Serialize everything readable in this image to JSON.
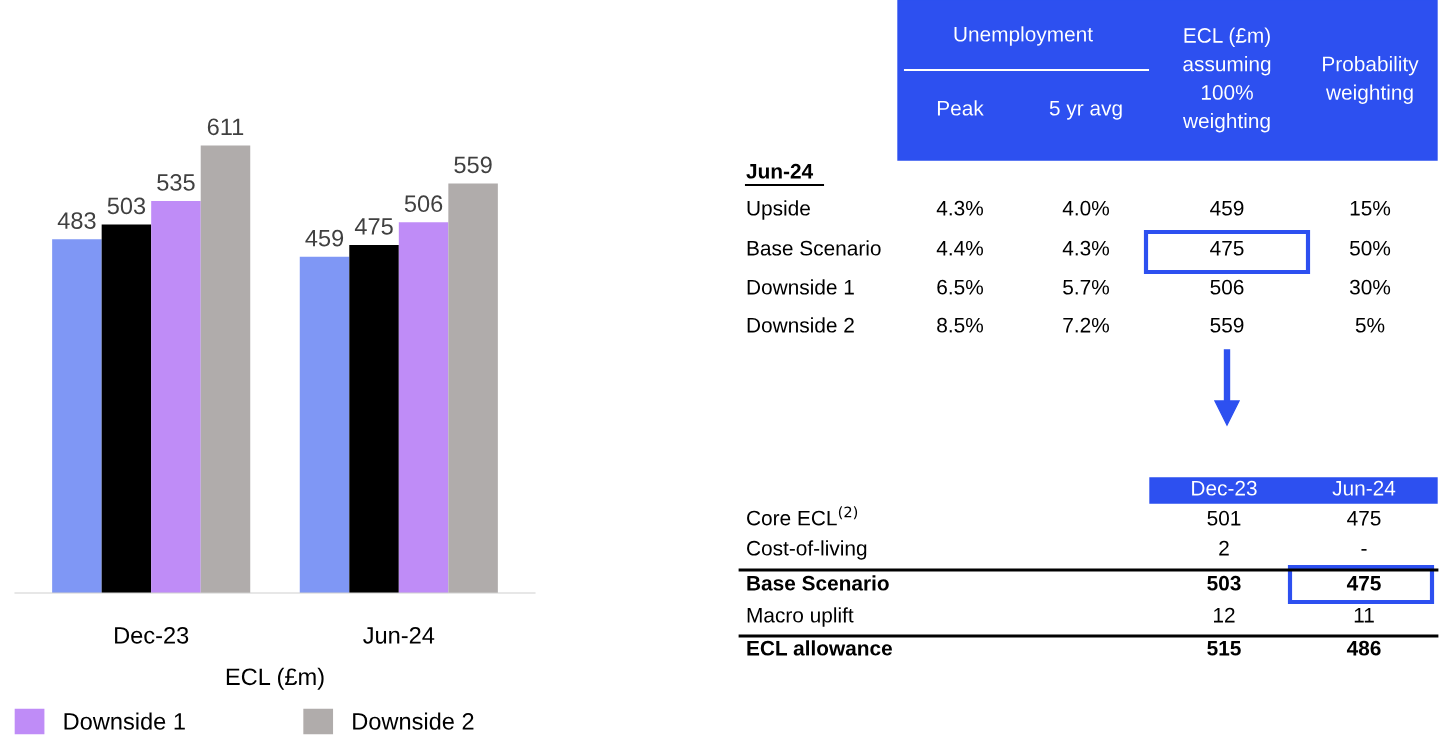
{
  "chart_data": [
    {
      "type": "bar",
      "xlabel": "ECL (£m)",
      "categories": [
        "Dec-23",
        "Jun-24"
      ],
      "series": [
        {
          "color": "#7f97f5",
          "values": [
            483,
            459
          ]
        },
        {
          "color": "#000000",
          "values": [
            503,
            475
          ]
        },
        {
          "name": "Downside 1",
          "color": "#bf8cf7",
          "values": [
            535,
            506
          ]
        },
        {
          "name": "Downside 2",
          "color": "#b0acab",
          "values": [
            611,
            559
          ]
        }
      ],
      "data_labels": true,
      "legend": "bottom",
      "grid": false
    },
    {
      "type": "other",
      "title": "Jun-24",
      "annotations": [
        "Unemployment"
      ],
      "color": "#2d50f0",
      "categories": [
        "Peak",
        "5 yr avg",
        "ECL (£m) assuming 100% weighting",
        "Probability weighting"
      ],
      "y_categories": [
        "Upside",
        "Base Scenario",
        "Downside 1",
        "Downside 2"
      ],
      "cell_labels": [
        [
          "4.3%",
          "4.0%",
          "459",
          "15%"
        ],
        [
          "4.4%",
          "4.3%",
          "475",
          "50%"
        ],
        [
          "6.5%",
          "5.7%",
          "506",
          "30%"
        ],
        [
          "8.5%",
          "7.2%",
          "559",
          "5%"
        ]
      ]
    },
    {
      "type": "other",
      "color": "#2d50f0",
      "categories": [
        "Dec-23",
        "Jun-24"
      ],
      "y_categories": [
        "Core ECL$^{(2)}$",
        "Cost-of-living",
        "Base Scenario",
        "Macro uplift",
        "ECL allowance"
      ],
      "cell_labels": [
        [
          "501",
          "475"
        ],
        [
          "2",
          "-"
        ],
        [
          "503",
          "475"
        ],
        [
          "12",
          "11"
        ],
        [
          "515",
          "486"
        ]
      ]
    }
  ]
}
